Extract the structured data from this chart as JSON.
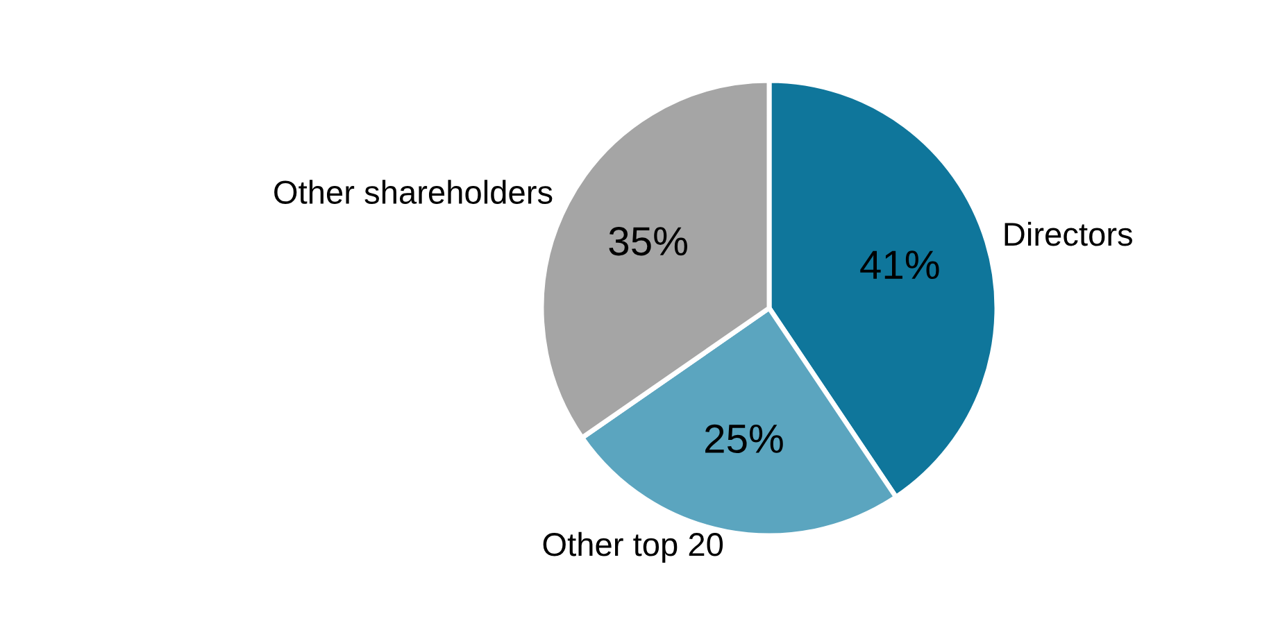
{
  "chart_data": {
    "type": "pie",
    "categories": [
      "Directors",
      "Other top 20",
      "Other shareholders"
    ],
    "values": [
      41,
      25,
      35
    ],
    "value_labels": [
      "41%",
      "25%",
      "35%"
    ],
    "colors": [
      "#0f769b",
      "#5ba5bf",
      "#a5a5a5"
    ],
    "legend": false
  }
}
